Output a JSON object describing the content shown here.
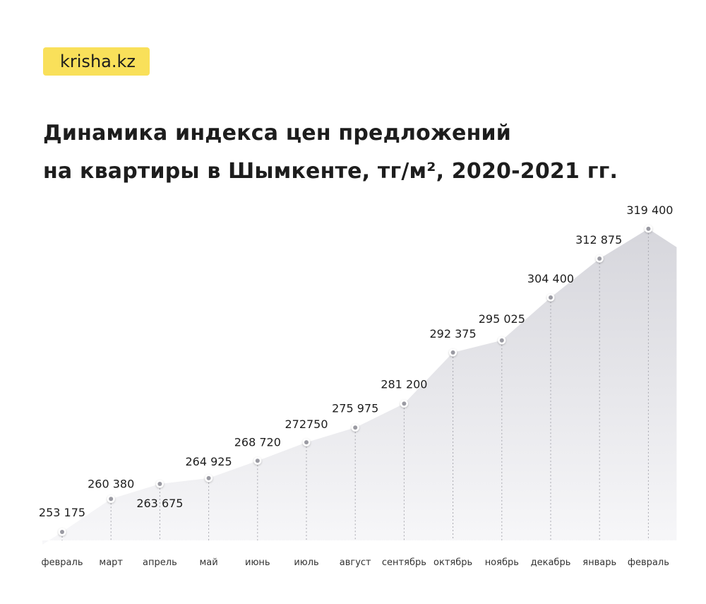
{
  "brand": {
    "logo_text": "krisha.kz",
    "logo_color": "#f9e05a"
  },
  "chart_data": {
    "type": "area",
    "title_lines": [
      "Динамика индекса цен предложений",
      "на квартиры в Шымкенте, тг/м², 2020-2021 гг."
    ],
    "xlabel": "",
    "ylabel": "",
    "categories": [
      "февраль",
      "март",
      "апрель",
      "май",
      "июнь",
      "июль",
      "август",
      "сентябрь",
      "октябрь",
      "ноябрь",
      "декабрь",
      "январь",
      "февраль"
    ],
    "values": [
      253175,
      260380,
      263675,
      264925,
      268720,
      272750,
      275975,
      281200,
      292375,
      295025,
      304400,
      312875,
      319400
    ],
    "value_labels": [
      "253 175",
      "260 380",
      "263 675",
      "264 925",
      "268 720",
      "272750",
      "275 975",
      "281 200",
      "292 375",
      "295 025",
      "304 400",
      "312 875",
      "319 400"
    ],
    "ylim": [
      247000,
      320000
    ],
    "grid": false,
    "legend": "none",
    "fill_color": "#d8d8de",
    "point_color": "#9a9aa2"
  }
}
